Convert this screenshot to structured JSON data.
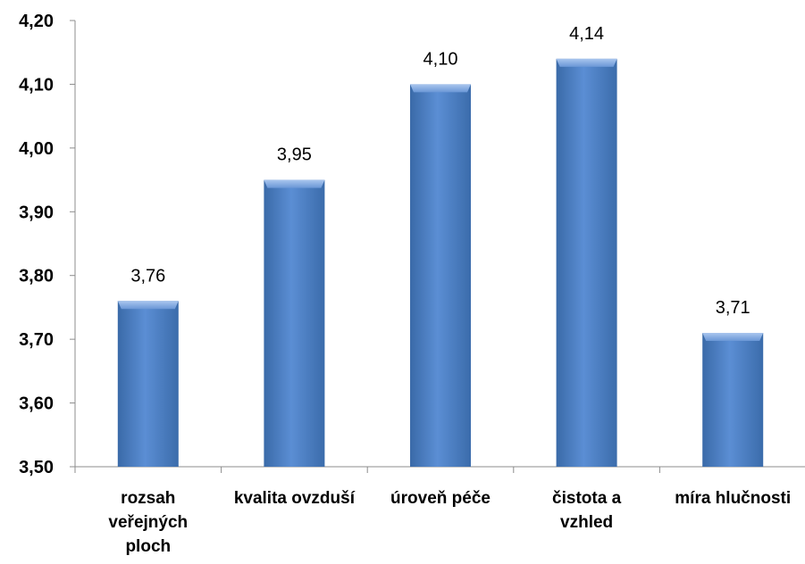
{
  "chart_data": {
    "type": "bar",
    "categories": [
      [
        "rozsah",
        "veřejných",
        "ploch"
      ],
      [
        "kvalita ovzduší"
      ],
      [
        "úroveň péče"
      ],
      [
        "čistota a",
        "vzhled"
      ],
      [
        "míra hlučnosti"
      ]
    ],
    "values": [
      3.76,
      3.95,
      4.1,
      4.14,
      3.71
    ],
    "value_labels": [
      "3,76",
      "3,95",
      "4,10",
      "4,14",
      "3,71"
    ],
    "y_ticks": [
      "3,50",
      "3,60",
      "3,70",
      "3,80",
      "3,90",
      "4,00",
      "4,10",
      "4,20"
    ],
    "ylim": [
      3.5,
      4.2
    ],
    "title": "",
    "xlabel": "",
    "ylabel": "",
    "grid": false,
    "legend": "none",
    "colors": {
      "bar_light": "#7aa3dc",
      "bar_mid": "#4f81bd",
      "bar_dark": "#2f5f9e",
      "axis": "#8c8c8c"
    }
  }
}
